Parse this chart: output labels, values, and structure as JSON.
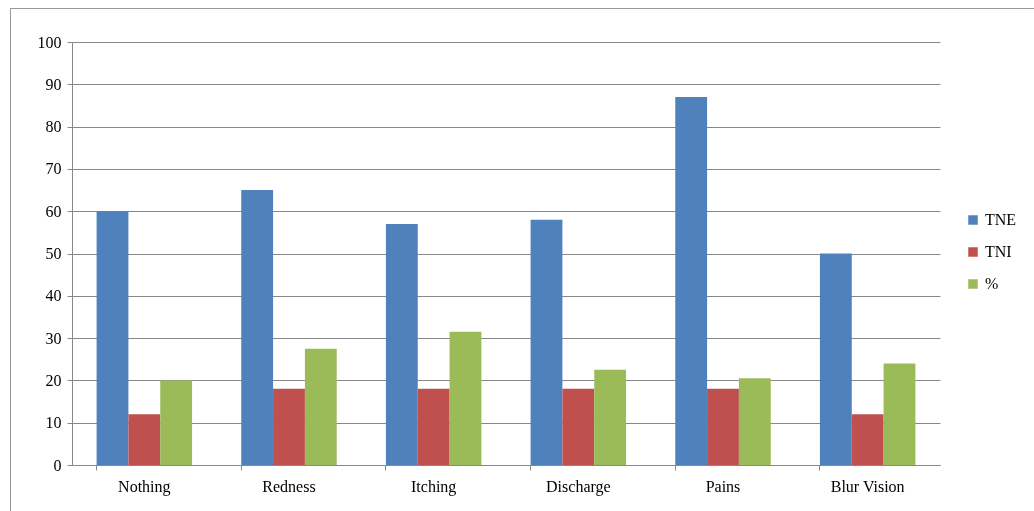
{
  "chart_data": {
    "type": "bar",
    "categories": [
      "Nothing",
      "Redness",
      "Itching",
      "Discharge",
      "Pains",
      "Blur Vision"
    ],
    "series": [
      {
        "name": "TNE",
        "color": "#4f81bd",
        "values": [
          60,
          65,
          57,
          58,
          87,
          50
        ]
      },
      {
        "name": "TNI",
        "color": "#c0504d",
        "values": [
          12,
          18,
          18,
          18,
          18,
          12
        ]
      },
      {
        "name": "%",
        "color": "#9bbb59",
        "values": [
          20,
          27.5,
          31.5,
          22.5,
          20.5,
          24
        ]
      }
    ],
    "ylim": [
      0,
      100
    ],
    "yticks": [
      0,
      10,
      20,
      30,
      40,
      50,
      60,
      70,
      80,
      90,
      100
    ],
    "grid": "y",
    "legend": "right"
  }
}
